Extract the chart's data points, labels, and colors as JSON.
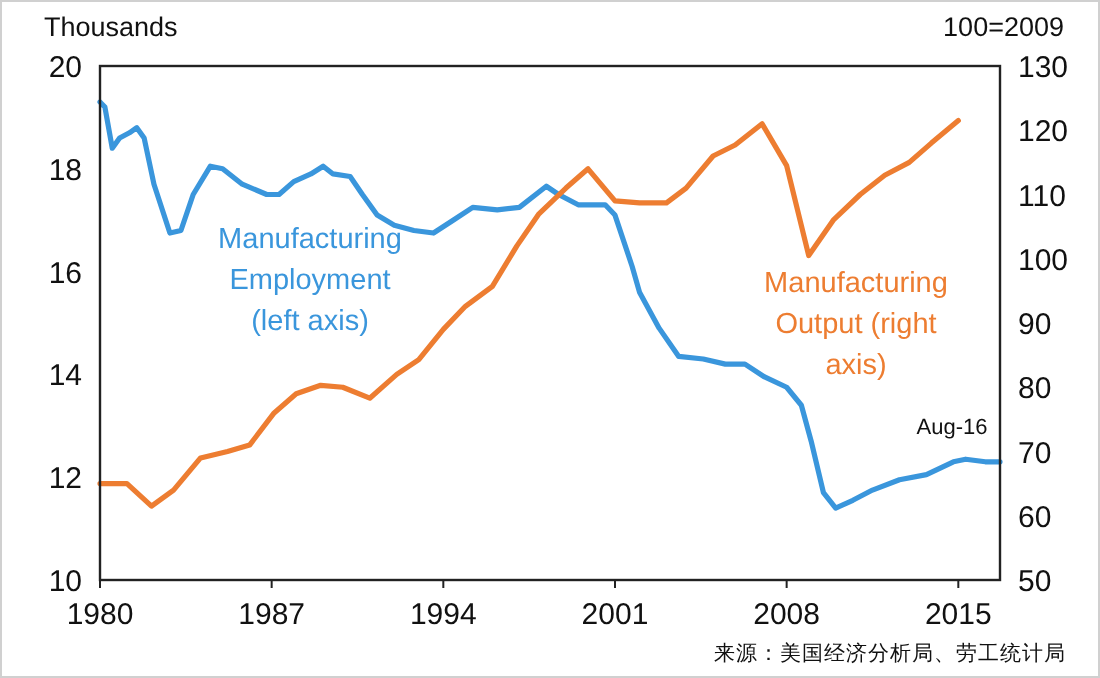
{
  "chart_data": {
    "type": "line",
    "ylabel": "Thousands",
    "y2label": "100=2009",
    "xlim": [
      1980,
      2016.7
    ],
    "xticks": [
      1980,
      1987,
      1994,
      2001,
      2008,
      2015
    ],
    "ylim": [
      10,
      20
    ],
    "yticks": [
      10,
      12,
      14,
      16,
      18,
      20
    ],
    "y2lim": [
      50,
      130
    ],
    "y2ticks": [
      50,
      60,
      70,
      80,
      90,
      100,
      110,
      120,
      130
    ],
    "grid": false,
    "marker": "none",
    "line_style": "solid",
    "series": [
      {
        "name": "Manufacturing Employment (left axis)",
        "color": "#3a96dc",
        "axis": "y",
        "x": [
          1980.0,
          1980.2,
          1980.5,
          1980.8,
          1981.2,
          1981.5,
          1981.8,
          1982.2,
          1982.85,
          1983.3,
          1983.8,
          1984.5,
          1985.0,
          1985.8,
          1986.8,
          1987.3,
          1987.9,
          1988.6,
          1989.1,
          1989.5,
          1990.2,
          1990.7,
          1991.3,
          1992.0,
          1992.8,
          1993.6,
          1994.4,
          1995.2,
          1996.2,
          1997.1,
          1998.2,
          1998.7,
          1999.5,
          2000.6,
          2001.0,
          2001.7,
          2002.0,
          2002.8,
          2003.6,
          2004.6,
          2005.5,
          2006.3,
          2007.1,
          2008.0,
          2008.6,
          2009.0,
          2009.5,
          2010.0,
          2010.7,
          2011.5,
          2012.6,
          2013.7,
          2014.8,
          2015.3,
          2016.1,
          2016.7
        ],
        "values": [
          19.3,
          19.2,
          18.4,
          18.6,
          18.7,
          18.8,
          18.6,
          17.7,
          16.75,
          16.8,
          17.5,
          18.05,
          18.0,
          17.7,
          17.5,
          17.5,
          17.75,
          17.9,
          18.05,
          17.9,
          17.85,
          17.5,
          17.1,
          16.9,
          16.8,
          16.75,
          17.0,
          17.25,
          17.2,
          17.25,
          17.66,
          17.5,
          17.3,
          17.3,
          17.1,
          16.1,
          15.6,
          14.9,
          14.35,
          14.3,
          14.2,
          14.2,
          13.95,
          13.75,
          13.4,
          12.7,
          11.7,
          11.4,
          11.55,
          11.75,
          11.95,
          12.05,
          12.3,
          12.35,
          12.3,
          12.3
        ]
      },
      {
        "name": "Manufacturing Output (right axis)",
        "color": "#ed7d31",
        "axis": "y2",
        "x": [
          1980.0,
          1981.1,
          1982.1,
          1983.0,
          1984.1,
          1985.2,
          1986.1,
          1987.1,
          1988.0,
          1989.0,
          1989.9,
          1991.0,
          1992.1,
          1993.0,
          1994.0,
          1994.9,
          1996.0,
          1997.0,
          1997.9,
          1999.0,
          1999.9,
          2001.0,
          2002.0,
          2003.1,
          2003.9,
          2005.0,
          2005.9,
          2007.0,
          2008.0,
          2008.9,
          2009.9,
          2011.0,
          2012.0,
          2013.0,
          2013.9,
          2015.0
        ],
        "values": [
          65,
          65,
          61.5,
          64,
          69,
          70,
          71,
          76,
          79,
          80.3,
          80,
          78.3,
          82,
          84.3,
          89,
          92.6,
          95.7,
          102,
          107,
          111,
          114,
          109,
          108.7,
          108.7,
          111,
          116,
          117.7,
          121,
          114.5,
          100.5,
          106,
          110,
          113,
          115,
          118,
          121.5
        ]
      }
    ],
    "annotations": [
      {
        "text": "Aug-16",
        "x": 2016.7,
        "y": 12.3
      },
      "来源：美国经济分析局、劳工统计局"
    ]
  }
}
